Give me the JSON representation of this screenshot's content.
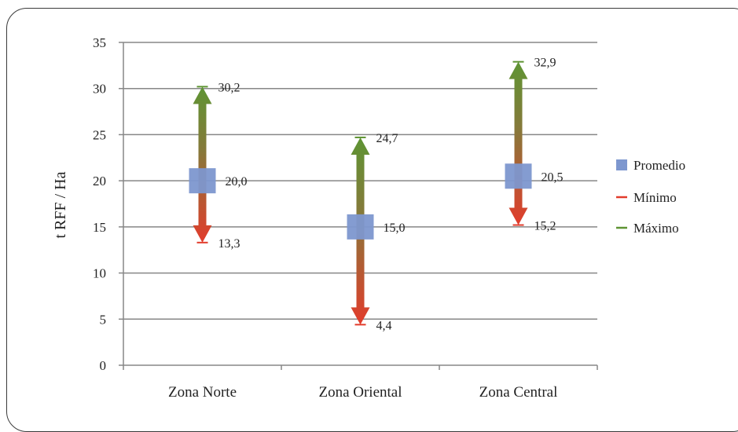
{
  "chart_data": {
    "type": "range-arrow",
    "categories": [
      "Zona Norte",
      "Zona Oriental",
      "Zona Central"
    ],
    "series": [
      {
        "name": "Promedio",
        "values": [
          20.0,
          15.0,
          20.5
        ],
        "labels": [
          "20,0",
          "15,0",
          "20,5"
        ]
      },
      {
        "name": "Mínimo",
        "values": [
          13.3,
          4.4,
          15.2
        ],
        "labels": [
          "13,3",
          "4,4",
          "15,2"
        ]
      },
      {
        "name": "Máximo",
        "values": [
          30.2,
          24.7,
          32.9
        ],
        "labels": [
          "30,2",
          "24,7",
          "32,9"
        ]
      }
    ],
    "ylabel": "t RFF / Ha",
    "ylim": [
      0,
      35
    ],
    "yticks": [
      "0",
      "5",
      "10",
      "15",
      "20",
      "25",
      "30",
      "35"
    ],
    "grid": true,
    "legend_position": "right"
  },
  "colors": {
    "promedio": "#7d97cf",
    "minimo": "#e23c2c",
    "maximo": "#5e9433",
    "grid": "#878787"
  }
}
